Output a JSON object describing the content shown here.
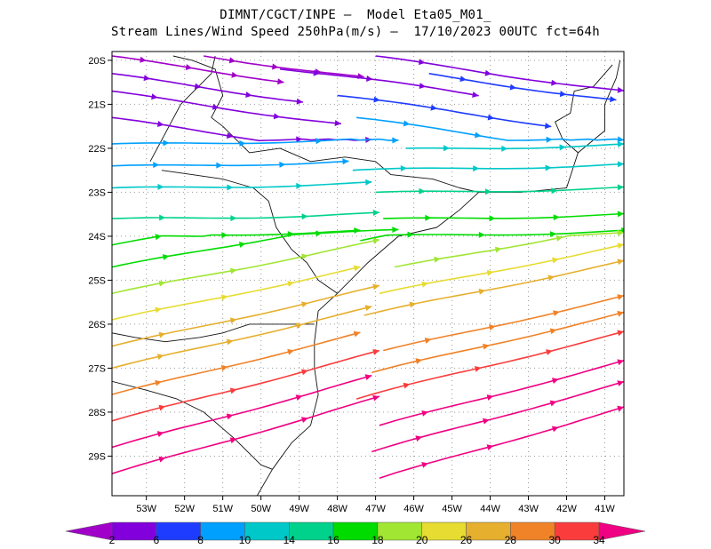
{
  "header": {
    "line1": "DIMNT/CGCT/INPE —  Model Eta05_M01_",
    "line2": "Stream Lines/Wind Speed 250hPa(m/s) —  17/10/2023 00UTC fct=64h"
  },
  "map": {
    "lon_range": [
      -53.9,
      -40.5
    ],
    "lat_range": [
      -29.9,
      -19.8
    ],
    "lon_ticks": [
      "53W",
      "52W",
      "51W",
      "50W",
      "49W",
      "48W",
      "47W",
      "46W",
      "45W",
      "44W",
      "43W",
      "42W",
      "41W"
    ],
    "lat_ticks": [
      "20S",
      "21S",
      "22S",
      "23S",
      "24S",
      "25S",
      "26S",
      "27S",
      "28S",
      "29S"
    ],
    "grid": true,
    "grid_style": "dotted"
  },
  "colorbar": {
    "labels": [
      "2",
      "6",
      "8",
      "10",
      "14",
      "16",
      "18",
      "20",
      "26",
      "28",
      "30",
      "34"
    ],
    "colors": [
      "#a000c8",
      "#8200dc",
      "#1e3cff",
      "#00a0ff",
      "#00c8c8",
      "#00d28c",
      "#00dc00",
      "#a0e632",
      "#e6dc32",
      "#e6af2d",
      "#f08228",
      "#fa3c3c",
      "#f00082"
    ]
  }
}
